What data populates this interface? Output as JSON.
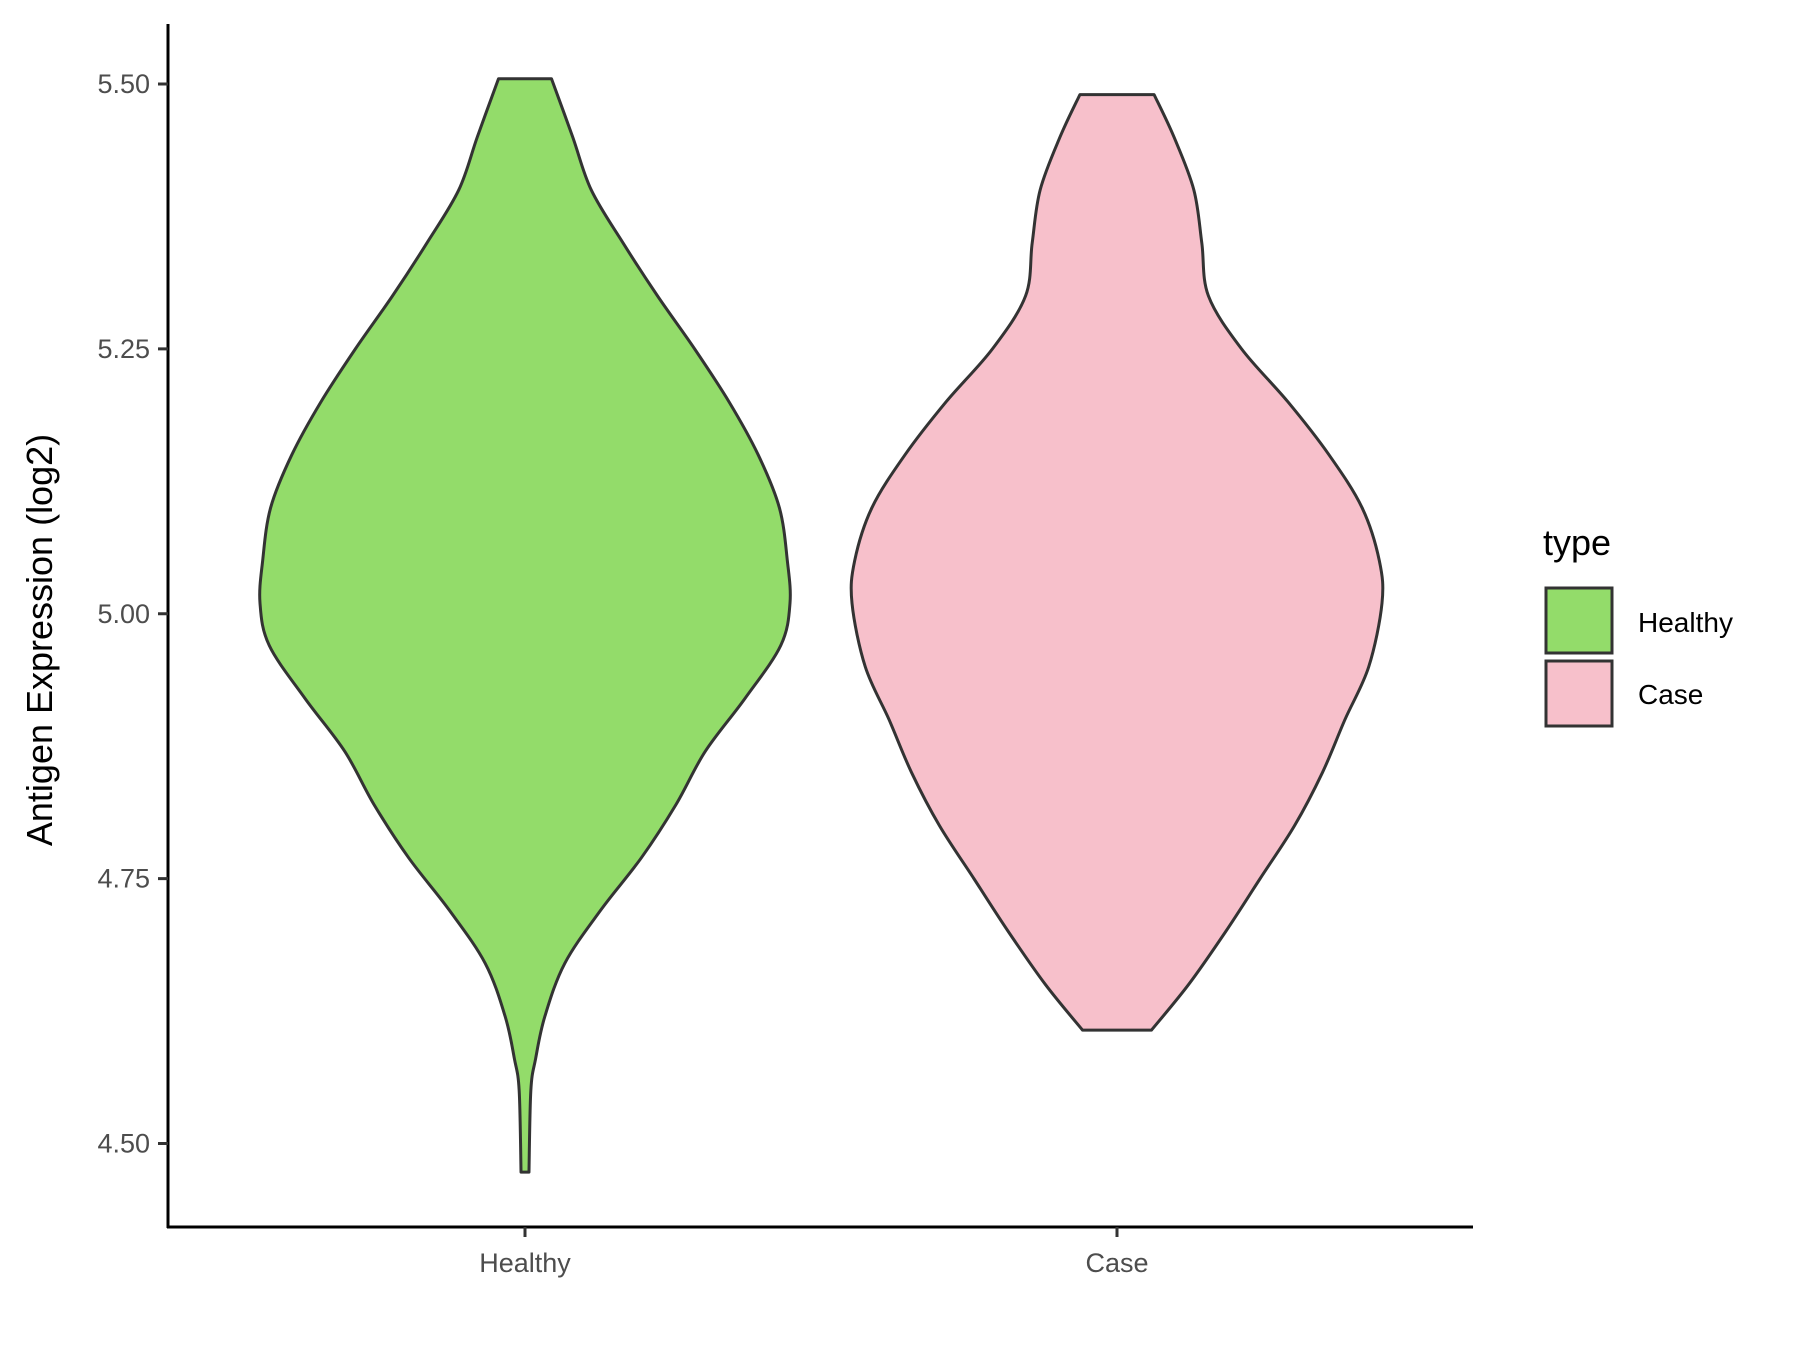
{
  "chart_data": {
    "type": "violin",
    "title": "",
    "xlabel": "",
    "ylabel": "Antigen Expression (log2)",
    "ylim": [
      4.42,
      5.56
    ],
    "yticks": [
      "4.50",
      "4.75",
      "5.00",
      "5.25",
      "5.50"
    ],
    "categories": [
      "Healthy",
      "Case"
    ],
    "legend": {
      "title": "type",
      "placement": "right",
      "entries": [
        "Healthy",
        "Case"
      ]
    },
    "grid": false,
    "series": [
      {
        "name": "Healthy",
        "color": "#93DC6A",
        "range": [
          4.473,
          5.505
        ],
        "density_profile": [
          [
            5.505,
            0.1
          ],
          [
            5.45,
            0.18
          ],
          [
            5.4,
            0.25
          ],
          [
            5.35,
            0.37
          ],
          [
            5.3,
            0.5
          ],
          [
            5.25,
            0.64
          ],
          [
            5.2,
            0.77
          ],
          [
            5.15,
            0.88
          ],
          [
            5.1,
            0.96
          ],
          [
            5.05,
            0.99
          ],
          [
            5.01,
            1.0
          ],
          [
            4.97,
            0.965
          ],
          [
            4.92,
            0.83
          ],
          [
            4.87,
            0.68
          ],
          [
            4.82,
            0.57
          ],
          [
            4.77,
            0.44
          ],
          [
            4.72,
            0.285
          ],
          [
            4.67,
            0.15
          ],
          [
            4.62,
            0.075
          ],
          [
            4.58,
            0.04
          ],
          [
            4.55,
            0.022
          ],
          [
            4.473,
            0.015
          ]
        ]
      },
      {
        "name": "Case",
        "color": "#F7C0CB",
        "range": [
          4.607,
          5.49
        ],
        "density_profile": [
          [
            5.49,
            0.14
          ],
          [
            5.45,
            0.215
          ],
          [
            5.4,
            0.29
          ],
          [
            5.35,
            0.32
          ],
          [
            5.3,
            0.345
          ],
          [
            5.25,
            0.47
          ],
          [
            5.2,
            0.645
          ],
          [
            5.15,
            0.8
          ],
          [
            5.1,
            0.925
          ],
          [
            5.05,
            0.99
          ],
          [
            5.01,
            1.0
          ],
          [
            4.95,
            0.95
          ],
          [
            4.9,
            0.86
          ],
          [
            4.85,
            0.775
          ],
          [
            4.8,
            0.67
          ],
          [
            4.75,
            0.54
          ],
          [
            4.7,
            0.41
          ],
          [
            4.65,
            0.27
          ],
          [
            4.607,
            0.13
          ]
        ]
      }
    ]
  }
}
